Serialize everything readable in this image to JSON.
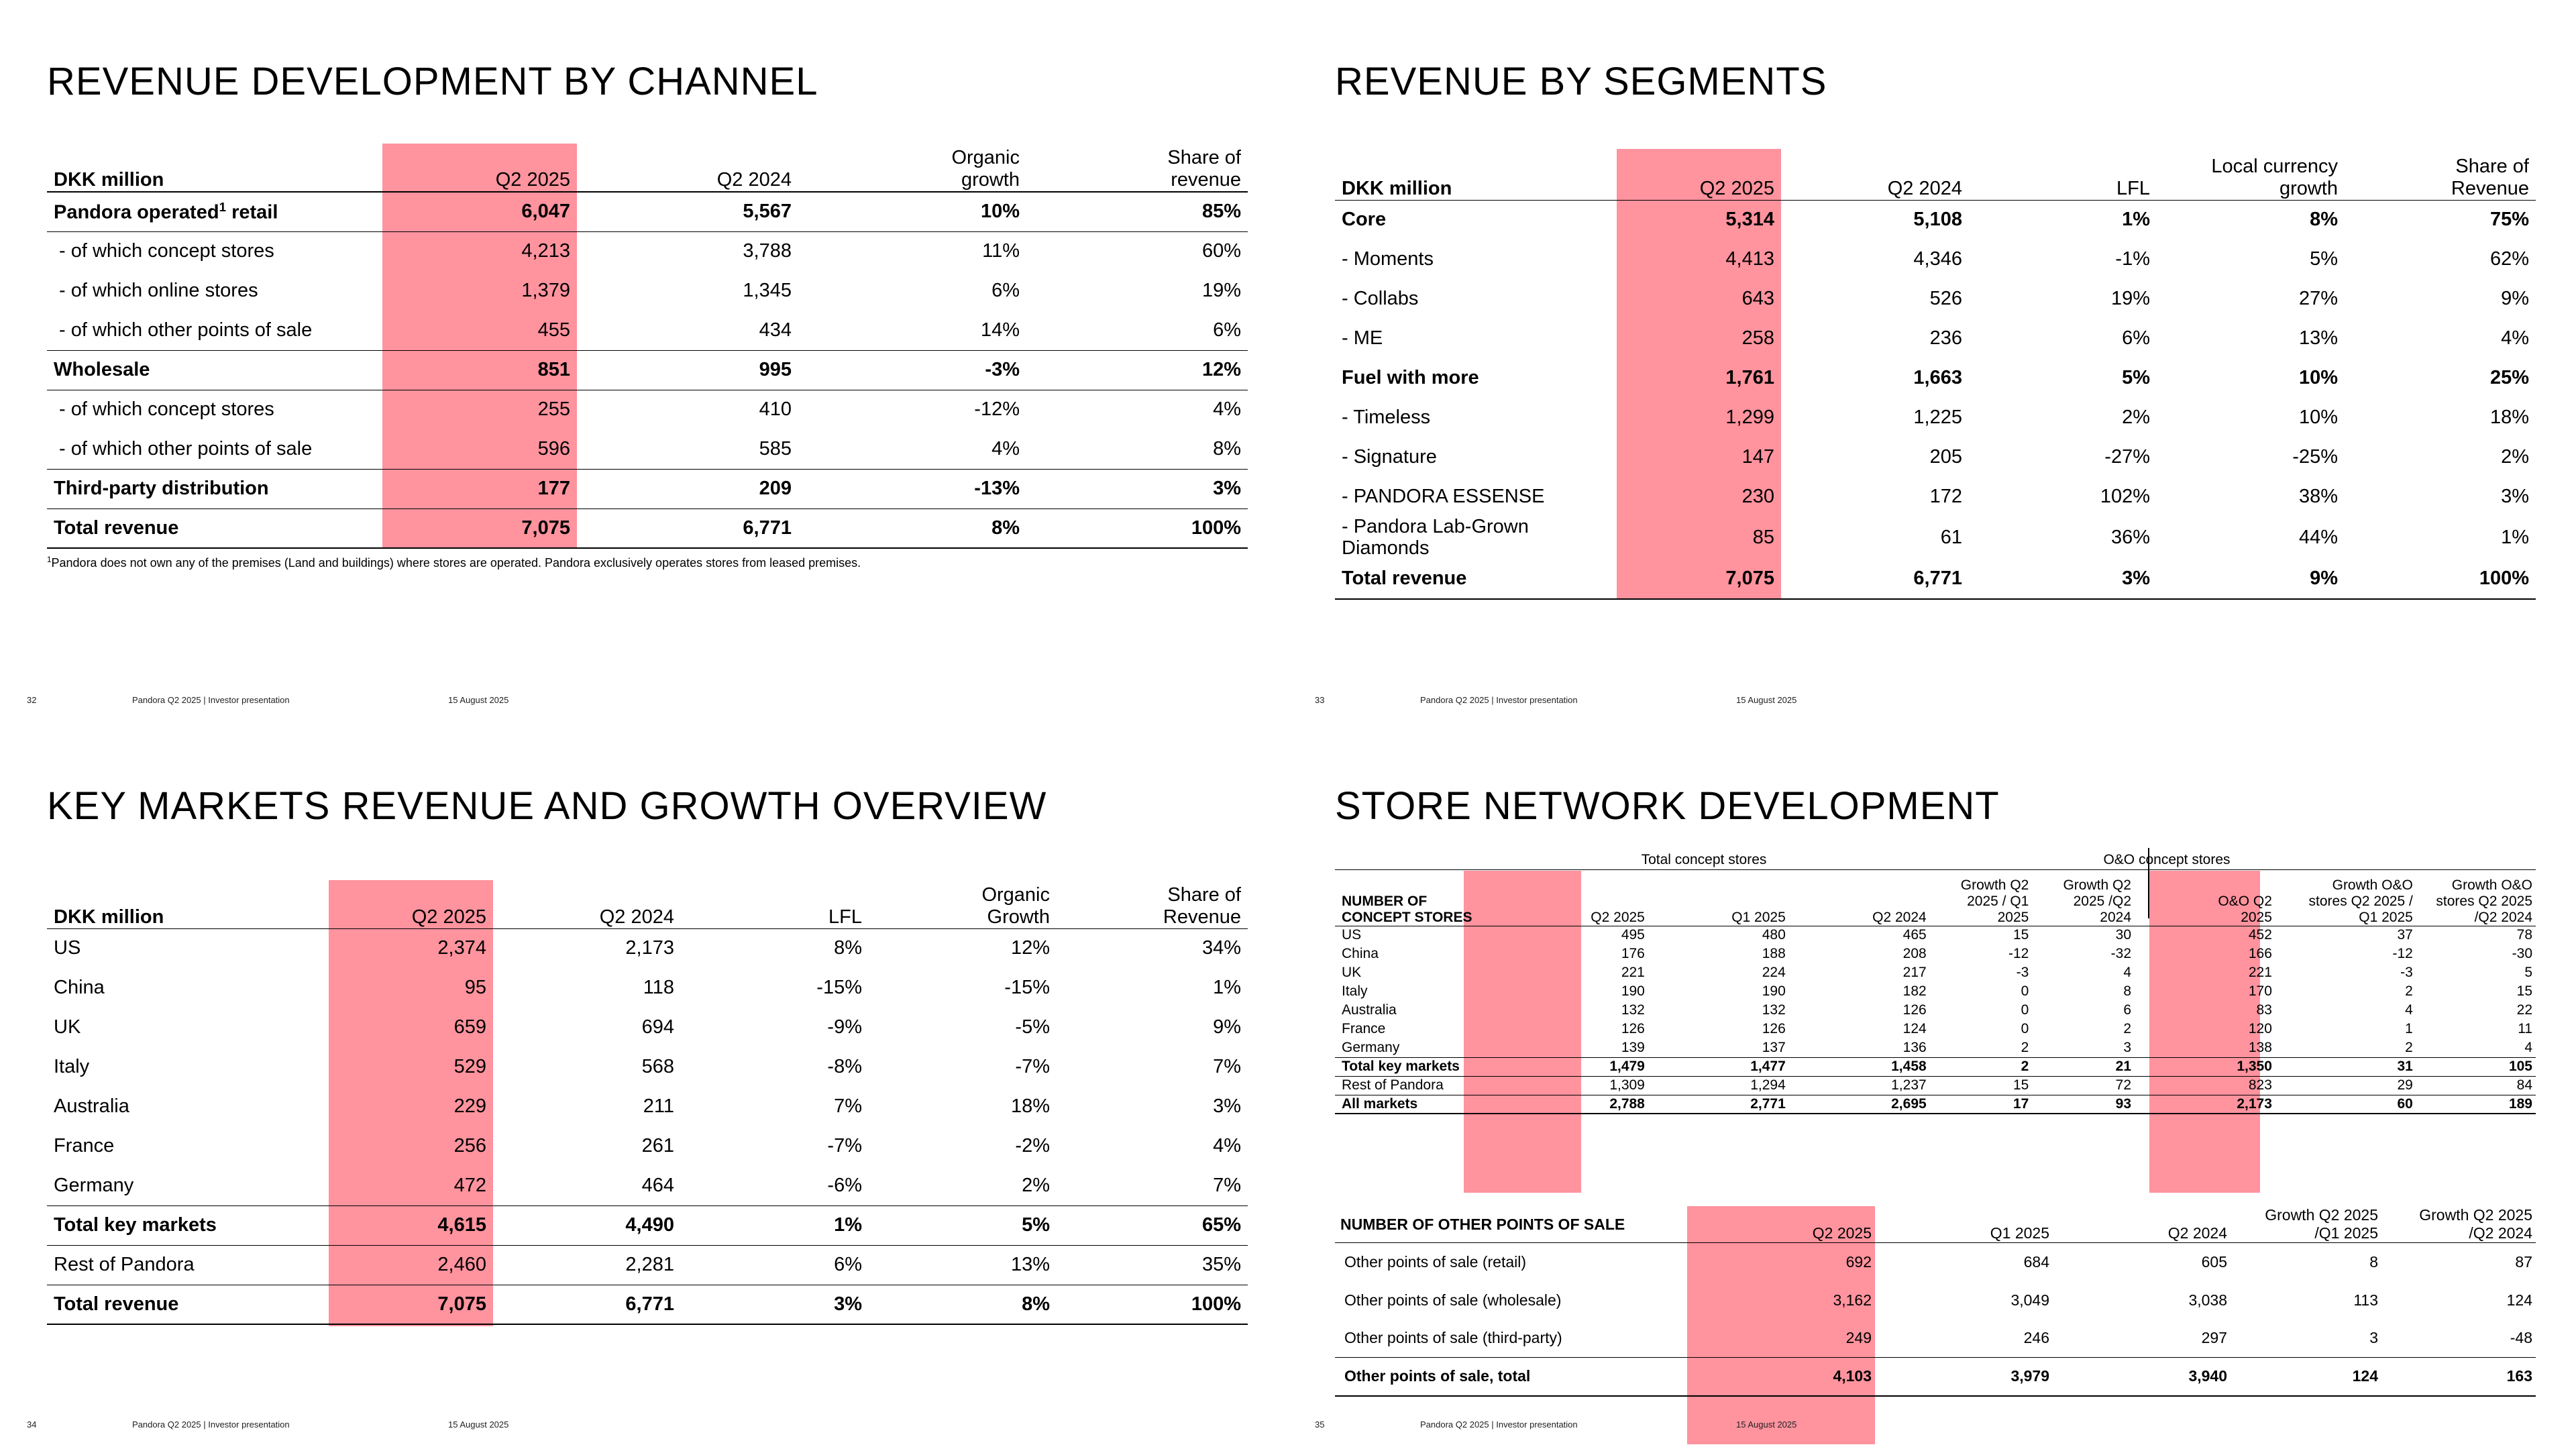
{
  "common": {
    "footer_text": "Pandora Q2 2025 | Investor presentation",
    "footer_date": "15 August 2025"
  },
  "slide1": {
    "page": "32",
    "title": "REVENUE DEVELOPMENT BY CHANNEL",
    "headers": [
      "DKK million",
      "Q2 2025",
      "Q2 2024",
      "Organic growth",
      "Share of revenue"
    ],
    "rows": [
      {
        "label": "Pandora operated",
        "sup": "1",
        "label_suffix": " retail",
        "bold": true,
        "values": [
          "6,047",
          "5,567",
          "10%",
          "85%"
        ]
      },
      {
        "label": "- of which concept stores",
        "bold": false,
        "values": [
          "4,213",
          "3,788",
          "11%",
          "60%"
        ]
      },
      {
        "label": "- of which online stores",
        "bold": false,
        "values": [
          "1,379",
          "1,345",
          "6%",
          "19%"
        ]
      },
      {
        "label": "- of which other points of sale",
        "bold": false,
        "values": [
          "455",
          "434",
          "14%",
          "6%"
        ]
      },
      {
        "label": "Wholesale",
        "bold": true,
        "values": [
          "851",
          "995",
          "-3%",
          "12%"
        ]
      },
      {
        "label": "- of which concept stores",
        "bold": false,
        "values": [
          "255",
          "410",
          "-12%",
          "4%"
        ]
      },
      {
        "label": "- of which other points of sale",
        "bold": false,
        "values": [
          "596",
          "585",
          "4%",
          "8%"
        ]
      },
      {
        "label": "Third-party distribution",
        "bold": true,
        "values": [
          "177",
          "209",
          "-13%",
          "3%"
        ]
      },
      {
        "label": "Total revenue",
        "bold": true,
        "values": [
          "7,075",
          "6,771",
          "8%",
          "100%"
        ]
      }
    ],
    "footnote_mark": "1",
    "footnote": "Pandora does not own any of the premises (Land and buildings) where stores are operated. Pandora exclusively operates stores from leased premises."
  },
  "slide2": {
    "page": "33",
    "title": "REVENUE BY SEGMENTS",
    "headers": [
      "DKK million",
      "Q2 2025",
      "Q2 2024",
      "LFL",
      "Local currency growth",
      "Share of Revenue"
    ],
    "rows": [
      {
        "label": "Core",
        "bold": true,
        "values": [
          "5,314",
          "5,108",
          "1%",
          "8%",
          "75%"
        ]
      },
      {
        "label": "- Moments",
        "bold": false,
        "values": [
          "4,413",
          "4,346",
          "-1%",
          "5%",
          "62%"
        ]
      },
      {
        "label": "- Collabs",
        "bold": false,
        "values": [
          "643",
          "526",
          "19%",
          "27%",
          "9%"
        ]
      },
      {
        "label": "- ME",
        "bold": false,
        "values": [
          "258",
          "236",
          "6%",
          "13%",
          "4%"
        ]
      },
      {
        "label": "Fuel with more",
        "bold": true,
        "values": [
          "1,761",
          "1,663",
          "5%",
          "10%",
          "25%"
        ]
      },
      {
        "label": "- Timeless",
        "bold": false,
        "values": [
          "1,299",
          "1,225",
          "2%",
          "10%",
          "18%"
        ]
      },
      {
        "label": "- Signature",
        "bold": false,
        "values": [
          "147",
          "205",
          "-27%",
          "-25%",
          "2%"
        ]
      },
      {
        "label": "- PANDORA ESSENSE",
        "bold": false,
        "values": [
          "230",
          "172",
          "102%",
          "38%",
          "3%"
        ]
      },
      {
        "label": "- Pandora Lab-Grown Diamonds",
        "bold": false,
        "values": [
          "85",
          "61",
          "36%",
          "44%",
          "1%"
        ]
      },
      {
        "label": "Total revenue",
        "bold": true,
        "values": [
          "7,075",
          "6,771",
          "3%",
          "9%",
          "100%"
        ]
      }
    ]
  },
  "slide3": {
    "page": "34",
    "title": "KEY MARKETS REVENUE AND GROWTH OVERVIEW",
    "headers": [
      "DKK million",
      "Q2 2025",
      "Q2 2024",
      "LFL",
      "Organic Growth",
      "Share of Revenue"
    ],
    "rows": [
      {
        "label": "US",
        "bold": false,
        "values": [
          "2,374",
          "2,173",
          "8%",
          "12%",
          "34%"
        ]
      },
      {
        "label": "China",
        "bold": false,
        "values": [
          "95",
          "118",
          "-15%",
          "-15%",
          "1%"
        ]
      },
      {
        "label": "UK",
        "bold": false,
        "values": [
          "659",
          "694",
          "-9%",
          "-5%",
          "9%"
        ]
      },
      {
        "label": "Italy",
        "bold": false,
        "values": [
          "529",
          "568",
          "-8%",
          "-7%",
          "7%"
        ]
      },
      {
        "label": "Australia",
        "bold": false,
        "values": [
          "229",
          "211",
          "7%",
          "18%",
          "3%"
        ]
      },
      {
        "label": "France",
        "bold": false,
        "values": [
          "256",
          "261",
          "-7%",
          "-2%",
          "4%"
        ]
      },
      {
        "label": "Germany",
        "bold": false,
        "values": [
          "472",
          "464",
          "-6%",
          "2%",
          "7%"
        ]
      },
      {
        "label": "Total key markets",
        "bold": true,
        "values": [
          "4,615",
          "4,490",
          "1%",
          "5%",
          "65%"
        ]
      },
      {
        "label": "Rest of Pandora",
        "bold": false,
        "values": [
          "2,460",
          "2,281",
          "6%",
          "13%",
          "35%"
        ]
      },
      {
        "label": "Total revenue",
        "bold": true,
        "values": [
          "7,075",
          "6,771",
          "3%",
          "8%",
          "100%"
        ]
      }
    ]
  },
  "slide4": {
    "page": "35",
    "title": "STORE NETWORK DEVELOPMENT",
    "group_total": "Total concept stores",
    "group_oo": "O&O concept stores",
    "concept_headers": [
      "NUMBER OF CONCEPT STORES",
      "Q2 2025",
      "Q1 2025",
      "Q2 2024",
      "Growth Q2 2025 / Q1 2025",
      "Growth Q2 2025 /Q2 2024",
      "O&O Q2 2025",
      "Growth O&O stores Q2 2025 / Q1 2025",
      "Growth O&O stores Q2 2025 /Q2 2024"
    ],
    "concept_rows": [
      {
        "label": "US",
        "bold": false,
        "values": [
          "495",
          "480",
          "465",
          "15",
          "30",
          "452",
          "37",
          "78"
        ]
      },
      {
        "label": "China",
        "bold": false,
        "values": [
          "176",
          "188",
          "208",
          "-12",
          "-32",
          "166",
          "-12",
          "-30"
        ]
      },
      {
        "label": "UK",
        "bold": false,
        "values": [
          "221",
          "224",
          "217",
          "-3",
          "4",
          "221",
          "-3",
          "5"
        ]
      },
      {
        "label": "Italy",
        "bold": false,
        "values": [
          "190",
          "190",
          "182",
          "0",
          "8",
          "170",
          "2",
          "15"
        ]
      },
      {
        "label": "Australia",
        "bold": false,
        "values": [
          "132",
          "132",
          "126",
          "0",
          "6",
          "83",
          "4",
          "22"
        ]
      },
      {
        "label": "France",
        "bold": false,
        "values": [
          "126",
          "126",
          "124",
          "0",
          "2",
          "120",
          "1",
          "11"
        ]
      },
      {
        "label": "Germany",
        "bold": false,
        "values": [
          "139",
          "137",
          "136",
          "2",
          "3",
          "138",
          "2",
          "4"
        ]
      },
      {
        "label": "Total key markets",
        "bold": true,
        "values": [
          "1,479",
          "1,477",
          "1,458",
          "2",
          "21",
          "1,350",
          "31",
          "105"
        ]
      },
      {
        "label": "Rest of Pandora",
        "bold": false,
        "values": [
          "1,309",
          "1,294",
          "1,237",
          "15",
          "72",
          "823",
          "29",
          "84"
        ]
      },
      {
        "label": "All markets",
        "bold": true,
        "values": [
          "2,788",
          "2,771",
          "2,695",
          "17",
          "93",
          "2,173",
          "60",
          "189"
        ]
      }
    ],
    "pos_headers": [
      "NUMBER OF OTHER POINTS OF SALE",
      "Q2 2025",
      "Q1 2025",
      "Q2 2024",
      "Growth Q2 2025 /Q1 2025",
      "Growth Q2 2025 /Q2 2024"
    ],
    "pos_rows": [
      {
        "label": "Other points of sale (retail)",
        "bold": false,
        "values": [
          "692",
          "684",
          "605",
          "8",
          "87"
        ]
      },
      {
        "label": "Other points of sale (wholesale)",
        "bold": false,
        "values": [
          "3,162",
          "3,049",
          "3,038",
          "113",
          "124"
        ]
      },
      {
        "label": "Other points of sale (third-party)",
        "bold": false,
        "values": [
          "249",
          "246",
          "297",
          "3",
          "-48"
        ]
      },
      {
        "label": "Other points of sale, total",
        "bold": true,
        "values": [
          "4,103",
          "3,979",
          "3,940",
          "124",
          "163"
        ]
      }
    ]
  }
}
